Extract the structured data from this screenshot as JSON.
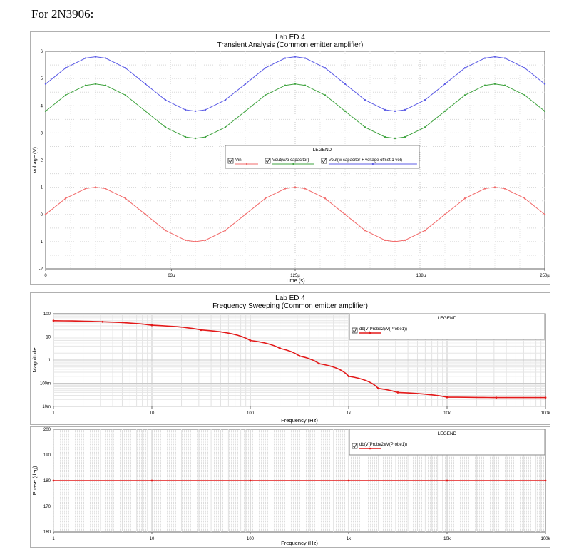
{
  "page": {
    "heading": "For 2N3906:"
  },
  "chart_data": [
    {
      "type": "line",
      "title": "Lab ED 4",
      "subtitle": "Transient Analysis (Common emitter amplifier)",
      "xlabel": "Time (s)",
      "ylabel": "Voltage (V)",
      "xlim": [
        0,
        250
      ],
      "ylim": [
        -2,
        6
      ],
      "x_ticks": [
        {
          "v": 0,
          "label": "0"
        },
        {
          "v": 63,
          "label": "63µ"
        },
        {
          "v": 125,
          "label": "125µ"
        },
        {
          "v": 188,
          "label": "188µ"
        },
        {
          "v": 250,
          "label": "250µ"
        }
      ],
      "y_ticks": [
        -2,
        -1,
        0,
        1,
        2,
        3,
        4,
        5,
        6
      ],
      "grid": true,
      "legend_title": "LEGEND",
      "legend_position": "center",
      "series": [
        {
          "name": "Vin",
          "color": "#f26b6b",
          "x": [
            0,
            10,
            20,
            25,
            30,
            40,
            50,
            60,
            70,
            75,
            80,
            90,
            100,
            110,
            120,
            125,
            130,
            140,
            150,
            160,
            170,
            175,
            180,
            190,
            200,
            210,
            220,
            225,
            230,
            240,
            250
          ],
          "values": [
            0,
            0.59,
            0.95,
            1,
            0.95,
            0.59,
            0,
            -0.59,
            -0.95,
            -1,
            -0.95,
            -0.59,
            0,
            0.59,
            0.95,
            1,
            0.95,
            0.59,
            0,
            -0.59,
            -0.95,
            -1,
            -0.95,
            -0.59,
            0,
            0.59,
            0.95,
            1,
            0.95,
            0.59,
            0
          ]
        },
        {
          "name": "Vout(w/o capacitor)",
          "color": "#3fa33f",
          "x": [
            0,
            10,
            20,
            25,
            30,
            40,
            50,
            60,
            70,
            75,
            80,
            90,
            100,
            110,
            120,
            125,
            130,
            140,
            150,
            160,
            170,
            175,
            180,
            190,
            200,
            210,
            220,
            225,
            230,
            240,
            250
          ],
          "values": [
            3.8,
            4.39,
            4.75,
            4.8,
            4.75,
            4.39,
            3.8,
            3.21,
            2.85,
            2.8,
            2.85,
            3.21,
            3.8,
            4.39,
            4.75,
            4.8,
            4.75,
            4.39,
            3.8,
            3.21,
            2.85,
            2.8,
            2.85,
            3.21,
            3.8,
            4.39,
            4.75,
            4.8,
            4.75,
            4.39,
            3.8
          ]
        },
        {
          "name": "Vout(w capacitor + voltage offset 1 vol)",
          "color": "#5c5ce6",
          "x": [
            0,
            10,
            20,
            25,
            30,
            40,
            50,
            60,
            70,
            75,
            80,
            90,
            100,
            110,
            120,
            125,
            130,
            140,
            150,
            160,
            170,
            175,
            180,
            190,
            200,
            210,
            220,
            225,
            230,
            240,
            250
          ],
          "values": [
            4.8,
            5.39,
            5.75,
            5.8,
            5.75,
            5.39,
            4.8,
            4.21,
            3.85,
            3.8,
            3.85,
            4.21,
            4.8,
            5.39,
            5.75,
            5.8,
            5.75,
            5.39,
            4.8,
            4.21,
            3.85,
            3.8,
            3.85,
            4.21,
            4.8,
            5.39,
            5.75,
            5.8,
            5.75,
            5.39,
            4.8
          ]
        }
      ]
    },
    {
      "type": "line",
      "title": "Lab ED 4",
      "subtitle": "Frequency Sweeping (Common emitter amplifier)",
      "xlabel": "Frequency (Hz)",
      "ylabel": "Magnitude",
      "x_scale": "log",
      "y_scale": "log",
      "xlim": [
        1,
        100000
      ],
      "ylim": [
        0.01,
        100
      ],
      "x_ticks": [
        {
          "v": 1,
          "label": "1"
        },
        {
          "v": 10,
          "label": "10"
        },
        {
          "v": 100,
          "label": "100"
        },
        {
          "v": 1000,
          "label": "1k"
        },
        {
          "v": 10000,
          "label": "10k"
        },
        {
          "v": 100000,
          "label": "100k"
        }
      ],
      "y_ticks": [
        {
          "v": 0.01,
          "label": "10m"
        },
        {
          "v": 0.1,
          "label": "100m"
        },
        {
          "v": 1,
          "label": "1"
        },
        {
          "v": 10,
          "label": "10"
        },
        {
          "v": 100,
          "label": "100"
        }
      ],
      "grid": true,
      "legend_title": "LEGEND",
      "legend_position": "top-right",
      "series": [
        {
          "name": "db(V(Probe2)/V(Probe1))",
          "color": "#e31a1a",
          "x": [
            1,
            3.16,
            10,
            31.6,
            100,
            200,
            316,
            500,
            1000,
            2000,
            3160,
            10000,
            31600,
            100000
          ],
          "values": [
            50,
            45,
            32,
            20,
            7,
            3.2,
            1.5,
            0.7,
            0.2,
            0.06,
            0.04,
            0.025,
            0.024,
            0.024
          ]
        }
      ]
    },
    {
      "type": "line",
      "title": "",
      "xlabel": "Frequency (Hz)",
      "ylabel": "Phase (deg)",
      "x_scale": "log",
      "xlim": [
        1,
        100000
      ],
      "ylim": [
        160,
        200
      ],
      "x_ticks": [
        {
          "v": 1,
          "label": "1"
        },
        {
          "v": 10,
          "label": "10"
        },
        {
          "v": 100,
          "label": "100"
        },
        {
          "v": 1000,
          "label": "1k"
        },
        {
          "v": 10000,
          "label": "10k"
        },
        {
          "v": 100000,
          "label": "100k"
        }
      ],
      "y_ticks": [
        {
          "v": 160,
          "label": "160"
        },
        {
          "v": 170,
          "label": "170"
        },
        {
          "v": 180,
          "label": "180"
        },
        {
          "v": 190,
          "label": "190"
        },
        {
          "v": 200,
          "label": "200"
        }
      ],
      "grid": true,
      "legend_title": "LEGEND",
      "legend_position": "top-right",
      "series": [
        {
          "name": "db(V(Probe2)/V(Probe1))",
          "color": "#e31a1a",
          "x": [
            1,
            10,
            100,
            1000,
            10000,
            100000
          ],
          "values": [
            180,
            180,
            180,
            180,
            180,
            180
          ]
        }
      ]
    }
  ]
}
